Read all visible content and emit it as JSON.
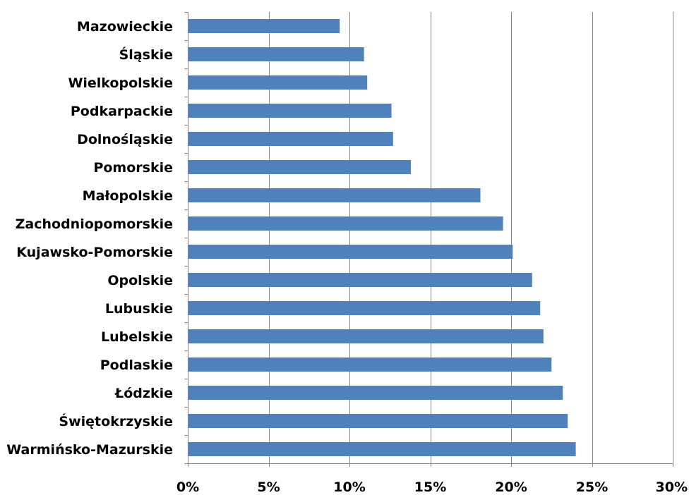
{
  "chart_data": {
    "type": "bar",
    "orientation": "horizontal",
    "categories": [
      "Mazowieckie",
      "Śląskie",
      "Wielkopolskie",
      "Podkarpackie",
      "Dolnośląskie",
      "Pomorskie",
      "Małopolskie",
      "Zachodniopomorskie",
      "Kujawsko-Pomorskie",
      "Opolskie",
      "Lubuskie",
      "Lubelskie",
      "Podlaskie",
      "Łódzkie",
      "Świętokrzyskie",
      "Warmińsko-Mazurskie"
    ],
    "values": [
      9.4,
      10.9,
      11.1,
      12.6,
      12.7,
      13.8,
      18.1,
      19.5,
      20.1,
      21.3,
      21.8,
      22.0,
      22.5,
      23.2,
      23.5,
      24.0
    ],
    "xlim": [
      0,
      30
    ],
    "x_ticks": [
      0,
      5,
      10,
      15,
      20,
      25,
      30
    ],
    "x_tick_labels": [
      "0%",
      "5%",
      "10%",
      "15%",
      "20%",
      "25%",
      "30%"
    ],
    "gridlines": "vertical",
    "title": "",
    "xlabel": "",
    "ylabel": "",
    "bar_color": "#4f81bd",
    "grid_color": "#868686",
    "axis_color": "#868686"
  }
}
